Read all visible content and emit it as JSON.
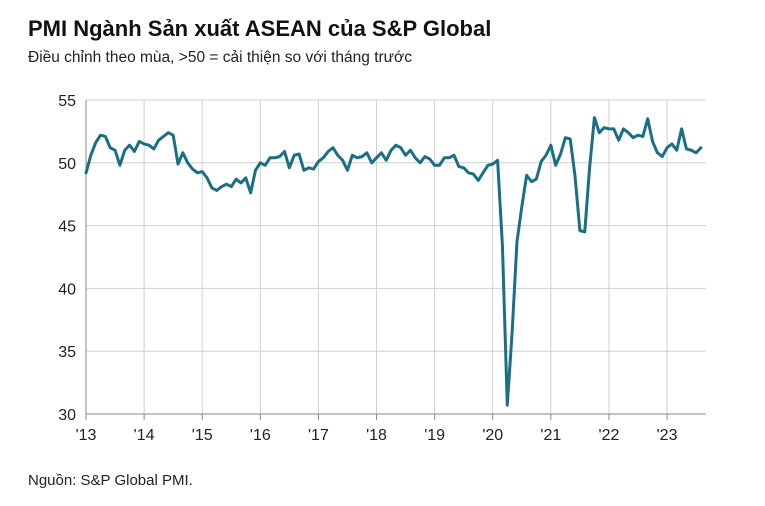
{
  "title": "PMI Ngành Sản xuất ASEAN của S&P Global",
  "subtitle": "Điều chỉnh theo mùa, >50 = cải thiện so với tháng trước",
  "source": "Nguồn: S&P Global PMI.",
  "chart_data": {
    "type": "line",
    "title": "PMI Ngành Sản xuất ASEAN của S&P Global",
    "subtitle": "Điều chỉnh theo mùa, >50 = cải thiện so với tháng trước",
    "xlabel": "",
    "ylabel": "",
    "ylim": [
      30,
      55
    ],
    "yticks": [
      30,
      35,
      40,
      45,
      50,
      55
    ],
    "xlim": [
      2013.0,
      2023.67
    ],
    "xticks": [
      {
        "label": "'13",
        "year": 2013
      },
      {
        "label": "'14",
        "year": 2014
      },
      {
        "label": "'15",
        "year": 2015
      },
      {
        "label": "'16",
        "year": 2016
      },
      {
        "label": "'17",
        "year": 2017
      },
      {
        "label": "'18",
        "year": 2018
      },
      {
        "label": "'19",
        "year": 2019
      },
      {
        "label": "'20",
        "year": 2020
      },
      {
        "label": "'21",
        "year": 2021
      },
      {
        "label": "'22",
        "year": 2022
      },
      {
        "label": "'23",
        "year": 2023
      }
    ],
    "grid": true,
    "line_color": "#1a6f85",
    "series": [
      {
        "start": "2013-01",
        "frequency": "monthly",
        "values": [
          49.2,
          50.6,
          51.6,
          52.2,
          52.1,
          51.2,
          51.0,
          49.8,
          51.0,
          51.4,
          50.9,
          51.7,
          51.5,
          51.4,
          51.1,
          51.8,
          52.1,
          52.4,
          52.2,
          49.9,
          50.8,
          50.0,
          49.5,
          49.2,
          49.3,
          48.8,
          48.0,
          47.8,
          48.1,
          48.3,
          48.1,
          48.7,
          48.4,
          48.8,
          47.6,
          49.4,
          50.0,
          49.8,
          50.4,
          50.4,
          50.5,
          50.9,
          49.6,
          50.6,
          50.7,
          49.4,
          49.6,
          49.5,
          50.1,
          50.4,
          50.9,
          51.2,
          50.6,
          50.2,
          49.4,
          50.6,
          50.4,
          50.5,
          50.8,
          50.0,
          50.4,
          50.8,
          50.2,
          51.0,
          51.4,
          51.2,
          50.6,
          51.0,
          50.4,
          50.0,
          50.5,
          50.3,
          49.8,
          49.8,
          50.4,
          50.4,
          50.6,
          49.7,
          49.6,
          49.2,
          49.1,
          48.6,
          49.2,
          49.8,
          49.9,
          50.2,
          43.4,
          30.7,
          36.5,
          43.7,
          46.5,
          49.0,
          48.5,
          48.7,
          50.1,
          50.6,
          51.4,
          49.8,
          50.7,
          52.0,
          51.9,
          48.9,
          44.6,
          44.5,
          49.6,
          53.6,
          52.4,
          52.8,
          52.7,
          52.7,
          51.8,
          52.7,
          52.4,
          52.0,
          52.2,
          52.1,
          53.5,
          51.7,
          50.8,
          50.5,
          51.2,
          51.5,
          51.0,
          52.7,
          51.1,
          51.0,
          50.8,
          51.2
        ]
      }
    ]
  }
}
